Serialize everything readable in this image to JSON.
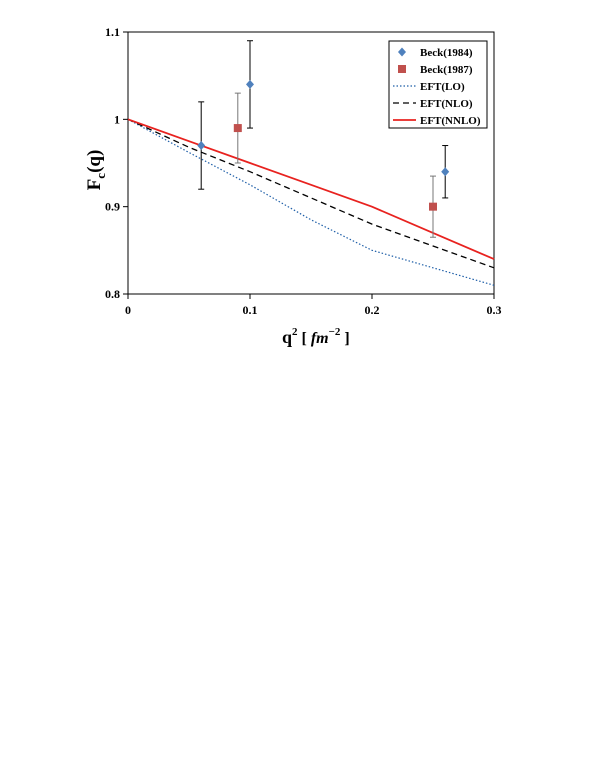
{
  "chart_data": {
    "type": "scatter",
    "xlabel": {
      "base": "q",
      "sup": "2",
      "unit_open": "[",
      "unit": "fm",
      "unit_sup": "−2",
      "unit_close": "]"
    },
    "ylabel": {
      "base": "F",
      "sub": "c",
      "rest": "(q)"
    },
    "xlim": [
      0,
      0.3
    ],
    "ylim": [
      0.8,
      1.1
    ],
    "x_ticks": [
      "0",
      "0.1",
      "0.2",
      "0.3"
    ],
    "y_ticks": [
      "0.8",
      "0.9",
      "1",
      "1.1"
    ],
    "x_tick_values": [
      0,
      0.1,
      0.2,
      0.3
    ],
    "y_tick_values": [
      0.8,
      0.9,
      1.0,
      1.1
    ],
    "grid": false,
    "legend_position": "top-right",
    "colors": {
      "beck1984": "#4f81bd",
      "beck1987": "#c0504d",
      "lo": "#1f5fa8",
      "nlo": "#000000",
      "nnlo": "#e8221f",
      "errorbar_1984": "#000000",
      "errorbar_1987": "#777777"
    },
    "series": [
      {
        "name": "Beck(1984)",
        "kind": "points",
        "marker": "diamond",
        "points": [
          {
            "x": 0.06,
            "y": 0.97,
            "err": 0.05
          },
          {
            "x": 0.1,
            "y": 1.04,
            "err": 0.05
          },
          {
            "x": 0.26,
            "y": 0.94,
            "err": 0.03
          }
        ]
      },
      {
        "name": "Beck(1987)",
        "kind": "points",
        "marker": "square",
        "points": [
          {
            "x": 0.09,
            "y": 0.99,
            "err": 0.04
          },
          {
            "x": 0.25,
            "y": 0.9,
            "err": 0.035
          }
        ]
      },
      {
        "name": "EFT(LO)",
        "kind": "line",
        "style": "dotted",
        "x": [
          0,
          0.05,
          0.1,
          0.15,
          0.2,
          0.25,
          0.3
        ],
        "y": [
          1.0,
          0.962,
          0.925,
          0.885,
          0.85,
          0.83,
          0.81
        ]
      },
      {
        "name": "EFT(NLO)",
        "kind": "line",
        "style": "dashed",
        "x": [
          0,
          0.05,
          0.1,
          0.15,
          0.2,
          0.25,
          0.3
        ],
        "y": [
          1.0,
          0.968,
          0.94,
          0.91,
          0.88,
          0.855,
          0.83
        ]
      },
      {
        "name": "EFT(NNLO)",
        "kind": "line",
        "style": "solid",
        "x": [
          0,
          0.05,
          0.1,
          0.15,
          0.2,
          0.25,
          0.3
        ],
        "y": [
          1.0,
          0.975,
          0.95,
          0.925,
          0.9,
          0.87,
          0.84
        ]
      }
    ]
  }
}
